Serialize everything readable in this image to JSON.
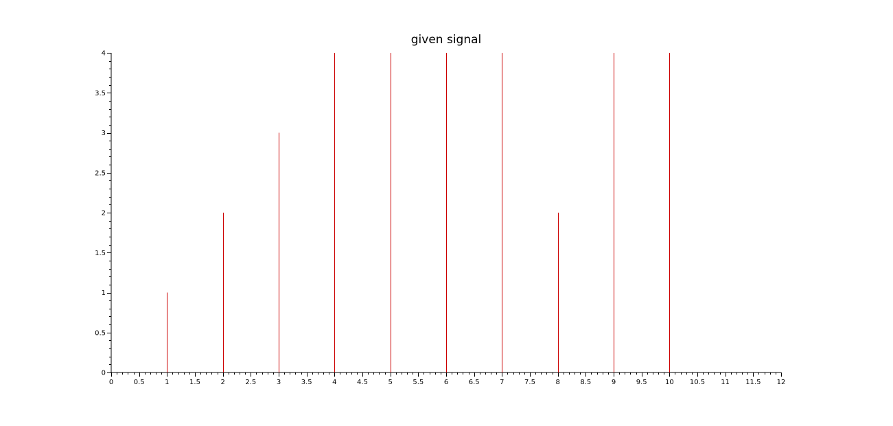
{
  "chart_data": {
    "type": "stem",
    "title": "given signal",
    "xlabel": "",
    "ylabel": "",
    "xlim": [
      0,
      12
    ],
    "ylim": [
      0,
      4
    ],
    "x_ticks": [
      "0",
      "0.5",
      "1",
      "1.5",
      "2",
      "2.5",
      "3",
      "3.5",
      "4",
      "4.5",
      "5",
      "5.5",
      "6",
      "6.5",
      "7",
      "7.5",
      "8",
      "8.5",
      "9",
      "9.5",
      "10",
      "10.5",
      "11",
      "11.5",
      "12"
    ],
    "y_ticks": [
      "0",
      "0.5",
      "1",
      "1.5",
      "2",
      "2.5",
      "3",
      "3.5",
      "4"
    ],
    "grid": false,
    "stem_color": "#cc0000",
    "x": [
      1,
      2,
      3,
      4,
      5,
      6,
      7,
      8,
      9,
      10
    ],
    "y": [
      1,
      2,
      3,
      4,
      4,
      4,
      4,
      2,
      4,
      4
    ]
  }
}
